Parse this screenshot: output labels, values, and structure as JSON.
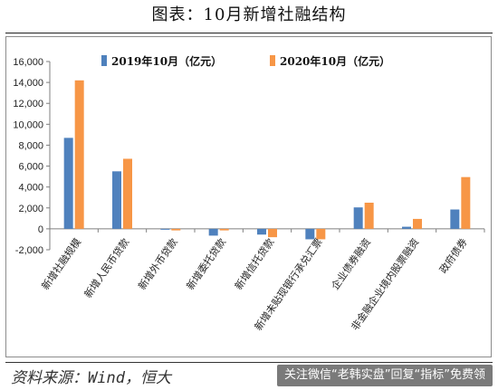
{
  "figure": {
    "title": "图表：10月新增社融结构",
    "source": "资料来源：Wind，恒大",
    "watermark": "关注微信“老韩实盘”回复“指标”免费领"
  },
  "colors": {
    "series_2019": "#4f81bd",
    "series_2020": "#f79646"
  },
  "chart_data": {
    "type": "bar",
    "categories": [
      "新增社融规模",
      "新增人民币贷款",
      "新增外币贷款",
      "新增委托贷款",
      "新增信托贷款",
      "新增未贴现银行承兑汇票",
      "企业债券融资",
      "非金融企业境内股票融资",
      "政府债券"
    ],
    "series": [
      {
        "name": "2019年10月（亿元）",
        "values": [
          8700,
          5500,
          -30,
          -650,
          -550,
          -1000,
          2050,
          200,
          1850
        ]
      },
      {
        "name": "2020年10月（亿元）",
        "values": [
          14200,
          6700,
          -150,
          -150,
          -800,
          -1000,
          2500,
          950,
          4950
        ]
      }
    ],
    "yticks": [
      "16,000",
      "14,000",
      "12,000",
      "10,000",
      "8,000",
      "6,000",
      "4,000",
      "2,000",
      "0",
      "-2,000"
    ],
    "ylim": [
      -2000,
      16000
    ],
    "legend_position": "top",
    "grid": false
  }
}
